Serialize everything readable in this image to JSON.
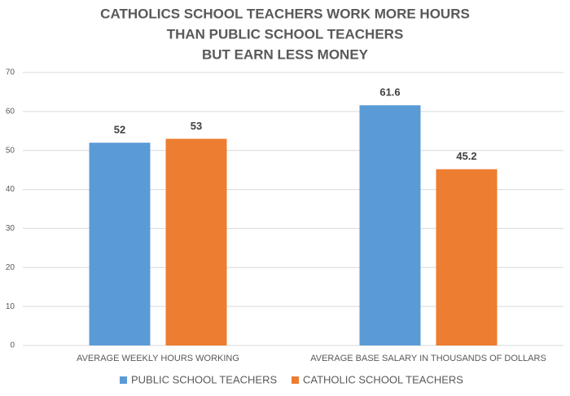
{
  "chart_data": {
    "type": "bar",
    "title": [
      "CATHOLICS SCHOOL TEACHERS WORK MORE HOURS",
      "THAN PUBLIC SCHOOL TEACHERS",
      "BUT EARN LESS MONEY"
    ],
    "categories": [
      "AVERAGE WEEKLY HOURS WORKING",
      "AVERAGE BASE SALARY IN THOUSANDS OF DOLLARS"
    ],
    "series": [
      {
        "name": "PUBLIC SCHOOL TEACHERS",
        "color": "#5b9bd5",
        "values": [
          52,
          61.6
        ]
      },
      {
        "name": "CATHOLIC SCHOOL TEACHERS",
        "color": "#ed7d31",
        "values": [
          53,
          45.2
        ]
      }
    ],
    "ylim": [
      0,
      70
    ],
    "yticks": [
      0,
      10,
      20,
      30,
      40,
      50,
      60,
      70
    ],
    "grid": true,
    "legend": "bottom"
  }
}
